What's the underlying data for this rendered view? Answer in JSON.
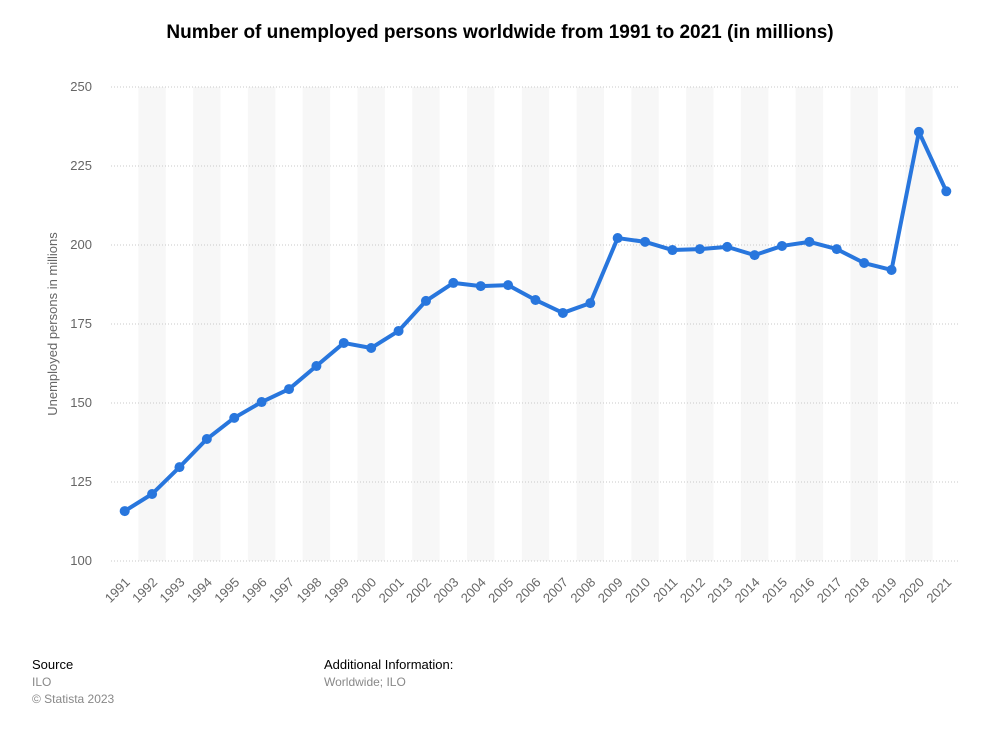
{
  "chart_data": {
    "type": "line",
    "title": "Number of unemployed persons worldwide from 1991 to 2021 (in millions)",
    "y_label": "Unemployed persons in millions",
    "categories": [
      "1991",
      "1992",
      "1993",
      "1994",
      "1995",
      "1996",
      "1997",
      "1998",
      "1999",
      "2000",
      "2001",
      "2002",
      "2003",
      "2004",
      "2005",
      "2006",
      "2007",
      "2008",
      "2009",
      "2010",
      "2011",
      "2012",
      "2013",
      "2014",
      "2015",
      "2016",
      "2017",
      "2018",
      "2019",
      "2020",
      "2021"
    ],
    "series": [
      {
        "name": "Unemployed persons",
        "color": "#2876dd",
        "values": [
          115.8,
          121.2,
          129.7,
          138.6,
          145.3,
          150.3,
          154.4,
          161.7,
          169.0,
          167.4,
          172.8,
          182.3,
          188.0,
          187.0,
          187.3,
          182.6,
          178.5,
          181.6,
          202.2,
          201.0,
          198.4,
          198.7,
          199.4,
          196.8,
          199.7,
          201.0,
          198.7,
          194.3,
          192.1,
          235.8,
          217.0
        ]
      }
    ],
    "ylim": [
      100,
      250
    ],
    "yticks": [
      100,
      125,
      150,
      175,
      200,
      225,
      250
    ],
    "grid": true,
    "source_label": "Source",
    "source": "ILO",
    "copyright": "© Statista 2023",
    "info_label": "Additional Information:",
    "info": "Worldwide; ILO"
  }
}
